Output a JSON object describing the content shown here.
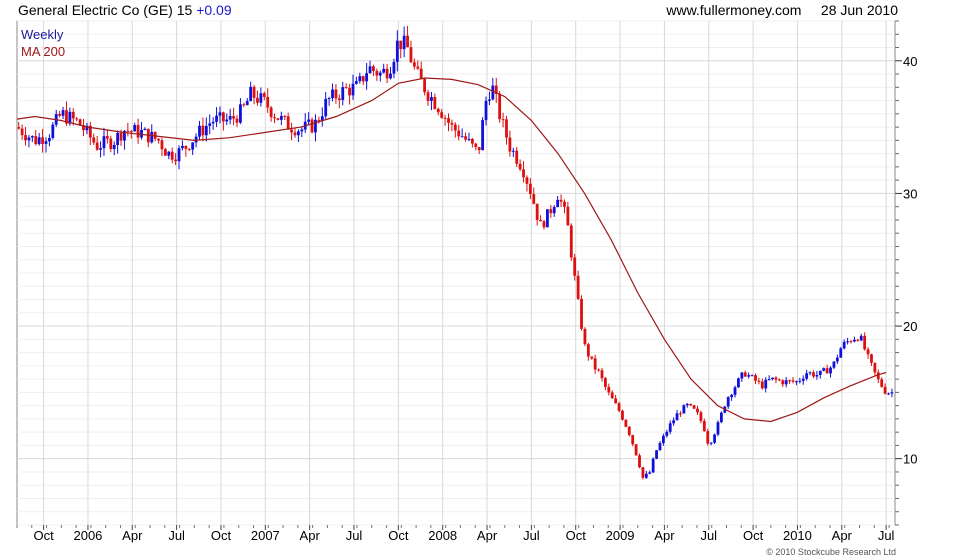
{
  "header": {
    "security": "General Electric Co (GE)",
    "price": "15",
    "change": "+0.09",
    "source": "www.fullermoney.com",
    "date": "28 Jun 2010"
  },
  "footer": {
    "copyright": "© 2010 Stockcube Research Ltd"
  },
  "colors": {
    "up": "#1010dd",
    "down": "#dd1010",
    "ma": "#a01818",
    "grid": "#d8d8d8",
    "legend_weekly": "#1a1a99",
    "legend_ma": "#a01818"
  },
  "chart_data": {
    "type": "candlestick",
    "interval": "weekly",
    "legend": [
      "Weekly",
      "MA 200"
    ],
    "ylim": [
      5,
      43
    ],
    "y_ticks": [
      10,
      20,
      30,
      40
    ],
    "x_ticks": [
      "Oct",
      "2006",
      "Apr",
      "Jul",
      "Oct",
      "2007",
      "Apr",
      "Jul",
      "Oct",
      "2008",
      "Apr",
      "Jul",
      "Oct",
      "2009",
      "Apr",
      "Jul",
      "Oct",
      "2010",
      "Apr",
      "Jul"
    ],
    "x_tick_positions": [
      1.75,
      2,
      2.25,
      2.5,
      2.75,
      3,
      3.25,
      3.5,
      3.75,
      4,
      4.25,
      4.5,
      4.75,
      5,
      5.25,
      5.5,
      5.75,
      6,
      6.25,
      6.5
    ],
    "x_range": [
      1.6,
      6.55
    ],
    "price_path": [
      [
        1.6,
        35.0
      ],
      [
        1.7,
        34.0
      ],
      [
        1.78,
        34.5
      ],
      [
        1.85,
        36.0
      ],
      [
        1.95,
        35.3
      ],
      [
        2.05,
        33.6
      ],
      [
        2.15,
        34.0
      ],
      [
        2.2,
        34.8
      ],
      [
        2.3,
        34.6
      ],
      [
        2.4,
        34.0
      ],
      [
        2.45,
        33.0
      ],
      [
        2.5,
        33.0
      ],
      [
        2.55,
        33.5
      ],
      [
        2.62,
        34.5
      ],
      [
        2.7,
        35.5
      ],
      [
        2.8,
        35.5
      ],
      [
        2.87,
        36.2
      ],
      [
        2.92,
        37.5
      ],
      [
        3.0,
        36.8
      ],
      [
        3.05,
        36.0
      ],
      [
        3.12,
        35.2
      ],
      [
        3.2,
        34.8
      ],
      [
        3.28,
        35.2
      ],
      [
        3.35,
        37.0
      ],
      [
        3.45,
        37.8
      ],
      [
        3.52,
        38.0
      ],
      [
        3.58,
        39.5
      ],
      [
        3.65,
        39.0
      ],
      [
        3.7,
        39.5
      ],
      [
        3.75,
        41.5
      ],
      [
        3.8,
        41.0
      ],
      [
        3.85,
        39.0
      ],
      [
        3.92,
        37.5
      ],
      [
        3.98,
        36.5
      ],
      [
        4.05,
        35.0
      ],
      [
        4.1,
        34.5
      ],
      [
        4.2,
        33.0
      ],
      [
        4.25,
        37.5
      ],
      [
        4.28,
        38.0
      ],
      [
        4.33,
        35.5
      ],
      [
        4.38,
        33.5
      ],
      [
        4.45,
        32.0
      ],
      [
        4.5,
        30.0
      ],
      [
        4.55,
        27.5
      ],
      [
        4.6,
        28.5
      ],
      [
        4.65,
        30.0
      ],
      [
        4.7,
        28.0
      ],
      [
        4.73,
        25.0
      ],
      [
        4.76,
        22.0
      ],
      [
        4.8,
        18.5
      ],
      [
        4.85,
        17.0
      ],
      [
        4.88,
        16.5
      ],
      [
        4.93,
        15.0
      ],
      [
        5.0,
        13.5
      ],
      [
        5.05,
        12.0
      ],
      [
        5.1,
        10.0
      ],
      [
        5.13,
        8.5
      ],
      [
        5.17,
        9.0
      ],
      [
        5.2,
        10.5
      ],
      [
        5.28,
        12.5
      ],
      [
        5.33,
        13.5
      ],
      [
        5.38,
        14.0
      ],
      [
        5.43,
        13.5
      ],
      [
        5.47,
        12.5
      ],
      [
        5.5,
        11.0
      ],
      [
        5.55,
        12.5
      ],
      [
        5.6,
        14.5
      ],
      [
        5.65,
        15.5
      ],
      [
        5.7,
        16.5
      ],
      [
        5.75,
        16.0
      ],
      [
        5.8,
        15.5
      ],
      [
        5.85,
        16.0
      ],
      [
        5.92,
        15.8
      ],
      [
        6.0,
        15.8
      ],
      [
        6.05,
        16.5
      ],
      [
        6.12,
        16.3
      ],
      [
        6.2,
        17.0
      ],
      [
        6.25,
        18.5
      ],
      [
        6.3,
        19.0
      ],
      [
        6.35,
        19.3
      ],
      [
        6.4,
        17.5
      ],
      [
        6.45,
        16.0
      ],
      [
        6.5,
        15.0
      ]
    ],
    "ma_path": [
      [
        1.6,
        35.6
      ],
      [
        1.7,
        35.8
      ],
      [
        1.85,
        35.5
      ],
      [
        2.0,
        35.0
      ],
      [
        2.2,
        34.6
      ],
      [
        2.4,
        34.3
      ],
      [
        2.6,
        34.0
      ],
      [
        2.8,
        34.2
      ],
      [
        3.0,
        34.6
      ],
      [
        3.2,
        35.0
      ],
      [
        3.4,
        35.8
      ],
      [
        3.6,
        37.0
      ],
      [
        3.75,
        38.3
      ],
      [
        3.9,
        38.7
      ],
      [
        4.05,
        38.6
      ],
      [
        4.2,
        38.2
      ],
      [
        4.35,
        37.3
      ],
      [
        4.5,
        35.5
      ],
      [
        4.65,
        33.0
      ],
      [
        4.8,
        30.0
      ],
      [
        4.95,
        26.5
      ],
      [
        5.1,
        22.5
      ],
      [
        5.25,
        19.0
      ],
      [
        5.4,
        16.0
      ],
      [
        5.55,
        14.0
      ],
      [
        5.7,
        13.0
      ],
      [
        5.85,
        12.8
      ],
      [
        6.0,
        13.5
      ],
      [
        6.15,
        14.6
      ],
      [
        6.3,
        15.5
      ],
      [
        6.45,
        16.3
      ],
      [
        6.5,
        16.5
      ]
    ]
  }
}
